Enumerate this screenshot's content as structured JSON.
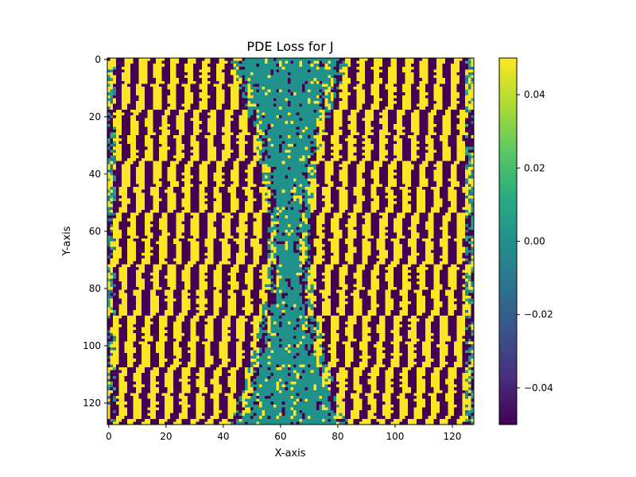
{
  "chart_data": {
    "type": "heatmap",
    "title": "PDE Loss for J",
    "xlabel": "X-axis",
    "ylabel": "Y-axis",
    "grid_size": [
      128,
      128
    ],
    "xlim": [
      -0.5,
      127.5
    ],
    "ylim": [
      127.5,
      -0.5
    ],
    "x_ticks": [
      0,
      20,
      40,
      60,
      80,
      100,
      120
    ],
    "y_ticks": [
      0,
      20,
      40,
      60,
      80,
      100,
      120
    ],
    "x_tick_labels": [
      "0",
      "20",
      "40",
      "60",
      "80",
      "100",
      "120"
    ],
    "y_tick_labels": [
      "0",
      "20",
      "40",
      "60",
      "80",
      "100",
      "120"
    ],
    "colormap": "viridis",
    "clim": [
      -0.05,
      0.05
    ],
    "colorbar": {
      "ticks": [
        0.04,
        0.02,
        0.0,
        -0.02,
        -0.04
      ],
      "tick_labels": [
        "0.04",
        "0.02",
        "0.00",
        "−0.02",
        "−0.04"
      ]
    },
    "pattern": {
      "description_values": "cells saturate at +0.05 (yellow) or -0.05 (purple); a central vertical band near x 48-78 is near 0.00 (teal), widest at the top and bottom rows and narrowest around rows 40-90",
      "saturated_high": 0.05,
      "saturated_low": -0.05,
      "central_value": 0.0,
      "central_band_x_range": [
        48,
        78
      ]
    }
  }
}
